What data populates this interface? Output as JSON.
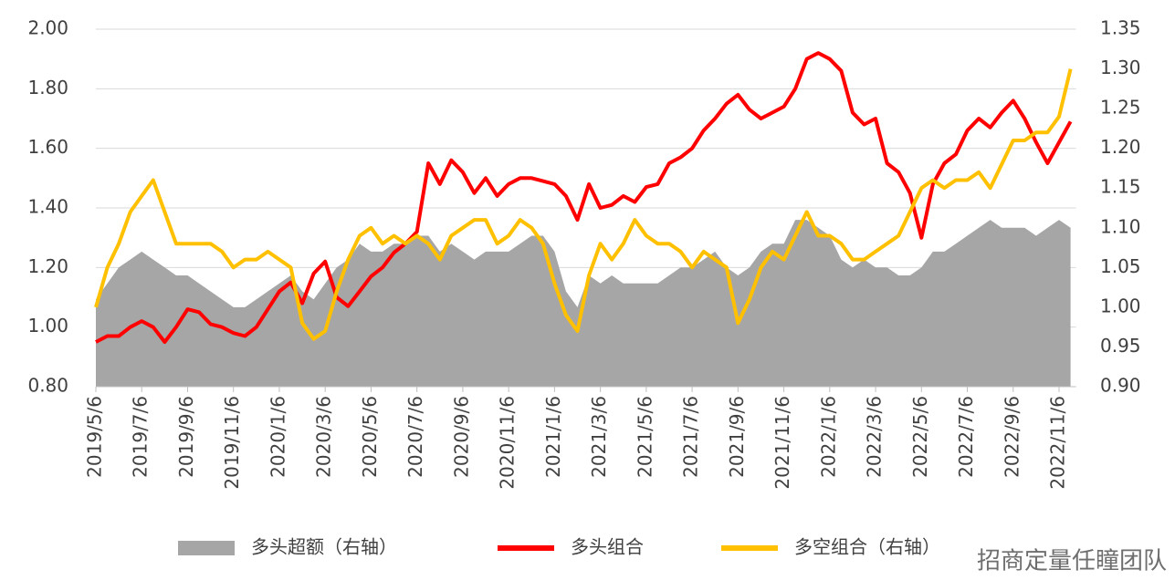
{
  "chart_data": {
    "type": "line",
    "categories": [
      "2019/5/6",
      null,
      null,
      null,
      "2019/7/6",
      null,
      null,
      null,
      "2019/9/6",
      null,
      null,
      null,
      "2019/11/6",
      null,
      null,
      null,
      "2020/1/6",
      null,
      null,
      null,
      "2020/3/6",
      null,
      null,
      null,
      "2020/5/6",
      null,
      null,
      null,
      "2020/7/6",
      null,
      null,
      null,
      "2020/9/6",
      null,
      null,
      null,
      "2020/11/6",
      null,
      null,
      null,
      "2021/1/6",
      null,
      null,
      null,
      "2021/3/6",
      null,
      null,
      null,
      "2021/5/6",
      null,
      null,
      null,
      "2021/7/6",
      null,
      null,
      null,
      "2021/9/6",
      null,
      null,
      null,
      "2021/11/6",
      null,
      null,
      null,
      "2022/1/6",
      null,
      null,
      null,
      "2022/3/6",
      null,
      null,
      null,
      "2022/5/6",
      null,
      null,
      null,
      "2022/7/6",
      null,
      null,
      null,
      "2022/9/6",
      null,
      null,
      null,
      "2022/11/6",
      null
    ],
    "series": [
      {
        "name": "多头超额（右轴）",
        "color": "#a6a6a6",
        "kind": "area",
        "axis": "y2",
        "values": [
          1.01,
          1.03,
          1.05,
          1.06,
          1.07,
          1.06,
          1.05,
          1.04,
          1.04,
          1.03,
          1.02,
          1.01,
          1.0,
          1.0,
          1.01,
          1.02,
          1.03,
          1.04,
          1.02,
          1.01,
          1.03,
          1.05,
          1.06,
          1.08,
          1.07,
          1.07,
          1.08,
          1.08,
          1.09,
          1.09,
          1.07,
          1.08,
          1.07,
          1.06,
          1.07,
          1.07,
          1.07,
          1.08,
          1.09,
          1.09,
          1.07,
          1.02,
          1.0,
          1.04,
          1.03,
          1.04,
          1.03,
          1.03,
          1.03,
          1.03,
          1.04,
          1.05,
          1.05,
          1.06,
          1.07,
          1.05,
          1.04,
          1.05,
          1.07,
          1.08,
          1.08,
          1.11,
          1.11,
          1.1,
          1.09,
          1.06,
          1.05,
          1.06,
          1.05,
          1.05,
          1.04,
          1.04,
          1.05,
          1.07,
          1.07,
          1.08,
          1.09,
          1.1,
          1.11,
          1.1,
          1.1,
          1.1,
          1.09,
          1.1,
          1.11,
          1.1
        ]
      },
      {
        "name": "多头组合",
        "color": "#ff0000",
        "kind": "line",
        "axis": "y",
        "values": [
          0.95,
          0.97,
          0.97,
          1.0,
          1.02,
          1.0,
          0.95,
          1.0,
          1.06,
          1.05,
          1.01,
          1.0,
          0.98,
          0.97,
          1.0,
          1.06,
          1.12,
          1.15,
          1.08,
          1.18,
          1.22,
          1.1,
          1.07,
          1.12,
          1.17,
          1.2,
          1.25,
          1.28,
          1.32,
          1.55,
          1.48,
          1.56,
          1.52,
          1.45,
          1.5,
          1.44,
          1.48,
          1.5,
          1.5,
          1.49,
          1.48,
          1.44,
          1.36,
          1.48,
          1.4,
          1.41,
          1.44,
          1.42,
          1.47,
          1.48,
          1.55,
          1.57,
          1.6,
          1.66,
          1.7,
          1.75,
          1.78,
          1.73,
          1.7,
          1.72,
          1.74,
          1.8,
          1.9,
          1.92,
          1.9,
          1.86,
          1.72,
          1.68,
          1.7,
          1.55,
          1.52,
          1.45,
          1.3,
          1.48,
          1.55,
          1.58,
          1.66,
          1.7,
          1.67,
          1.72,
          1.76,
          1.7,
          1.62,
          1.55,
          1.62,
          1.69
        ]
      },
      {
        "name": "多空组合（右轴）",
        "color": "#ffc000",
        "kind": "line",
        "axis": "y2",
        "values": [
          1.0,
          1.05,
          1.08,
          1.12,
          1.14,
          1.16,
          1.12,
          1.08,
          1.08,
          1.08,
          1.08,
          1.07,
          1.05,
          1.06,
          1.06,
          1.07,
          1.06,
          1.05,
          0.98,
          0.96,
          0.97,
          1.02,
          1.06,
          1.09,
          1.1,
          1.08,
          1.09,
          1.08,
          1.09,
          1.08,
          1.06,
          1.09,
          1.1,
          1.11,
          1.11,
          1.08,
          1.09,
          1.11,
          1.1,
          1.08,
          1.03,
          0.99,
          0.97,
          1.04,
          1.08,
          1.06,
          1.08,
          1.11,
          1.09,
          1.08,
          1.08,
          1.07,
          1.05,
          1.07,
          1.06,
          1.05,
          0.98,
          1.01,
          1.05,
          1.07,
          1.06,
          1.09,
          1.12,
          1.09,
          1.09,
          1.08,
          1.06,
          1.06,
          1.07,
          1.08,
          1.09,
          1.12,
          1.15,
          1.16,
          1.15,
          1.16,
          1.16,
          1.17,
          1.15,
          1.18,
          1.21,
          1.21,
          1.22,
          1.22,
          1.24,
          1.3
        ]
      }
    ],
    "ylim": [
      0.8,
      2.0
    ],
    "yticks": [
      {
        "value": 0.8,
        "label": "0.80"
      },
      {
        "value": 1.0,
        "label": "1.00"
      },
      {
        "value": 1.2,
        "label": "1.20"
      },
      {
        "value": 1.4,
        "label": "1.40"
      },
      {
        "value": 1.6,
        "label": "1.60"
      },
      {
        "value": 1.8,
        "label": "1.80"
      },
      {
        "value": 2.0,
        "label": "2.00"
      }
    ],
    "y2lim": [
      0.9,
      1.35
    ],
    "y2ticks": [
      {
        "value": 0.9,
        "label": "0.90"
      },
      {
        "value": 0.95,
        "label": "0.95"
      },
      {
        "value": 1.0,
        "label": "1.00"
      },
      {
        "value": 1.05,
        "label": "1.05"
      },
      {
        "value": 1.1,
        "label": "1.10"
      },
      {
        "value": 1.15,
        "label": "1.15"
      },
      {
        "value": 1.2,
        "label": "1.20"
      },
      {
        "value": 1.25,
        "label": "1.25"
      },
      {
        "value": 1.3,
        "label": "1.30"
      },
      {
        "value": 1.35,
        "label": "1.35"
      }
    ],
    "grid": true,
    "legend": "bottom",
    "watermark": "招商定量任瞳团队"
  }
}
